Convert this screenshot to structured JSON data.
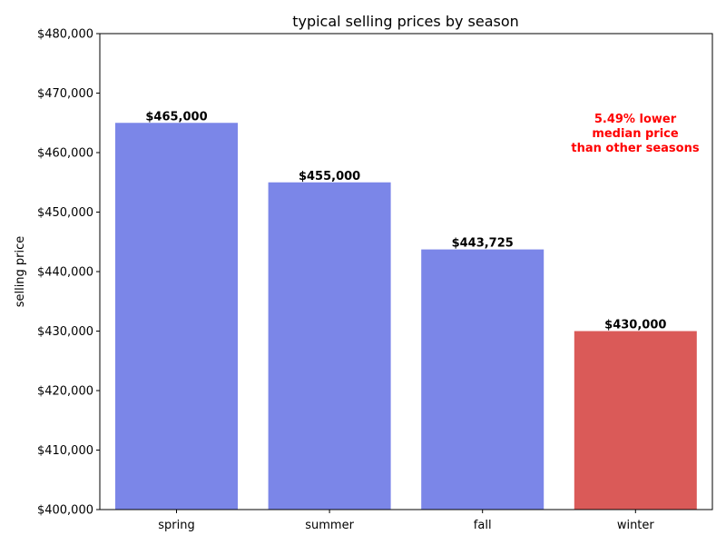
{
  "chart_data": {
    "type": "bar",
    "title": "typical selling prices by season",
    "xlabel": "",
    "ylabel": "selling price",
    "categories": [
      "spring",
      "summer",
      "fall",
      "winter"
    ],
    "values": [
      465000,
      455000,
      443725,
      430000
    ],
    "value_labels": [
      "$465,000",
      "$455,000",
      "$443,725",
      "$430,000"
    ],
    "bar_colors": [
      "#7b86e8",
      "#7b86e8",
      "#7b86e8",
      "#da5a58"
    ],
    "ylim": [
      400000,
      480000
    ],
    "yticks": [
      400000,
      410000,
      420000,
      430000,
      440000,
      450000,
      460000,
      470000,
      480000
    ],
    "ytick_labels": [
      "$400,000",
      "$410,000",
      "$420,000",
      "$430,000",
      "$440,000",
      "$450,000",
      "$460,000",
      "$470,000",
      "$480,000"
    ],
    "annotation": {
      "lines": [
        "5.49% lower",
        "median price",
        "than other seasons"
      ],
      "color": "#ff0000"
    },
    "grid": false
  }
}
